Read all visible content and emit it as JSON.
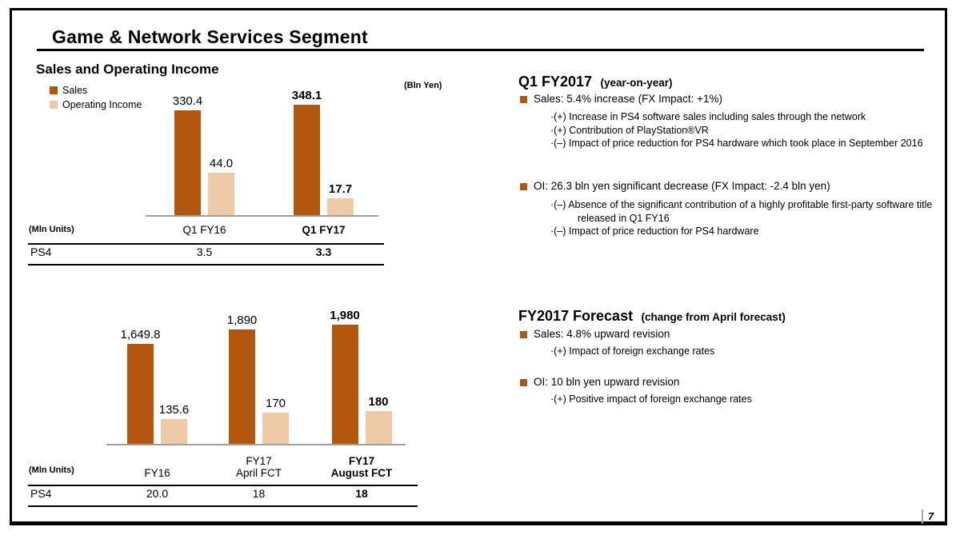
{
  "slide": {
    "title": "Game & Network Services Segment",
    "page_number": "7"
  },
  "left": {
    "section_title": "Sales and Operating Income",
    "unit_note": "(Bln Yen)",
    "legend": [
      {
        "label": "Sales",
        "color": "#b4570e"
      },
      {
        "label": "Operating Income",
        "color": "#eecaa7"
      }
    ]
  },
  "chart_data": [
    {
      "type": "bar",
      "title": "Sales and Operating Income",
      "subtitle": "Q1 year-on-year (Bln Yen)",
      "categories": [
        "Q1 FY16",
        "Q1 FY17"
      ],
      "emphasized_category_index": 1,
      "legend_position": "top-left",
      "grid": false,
      "series": [
        {
          "name": "Sales",
          "color": "#b4570e",
          "values": [
            330.4,
            348.1
          ],
          "value_labels": [
            "330.4",
            "348.1"
          ]
        },
        {
          "name": "Operating Income",
          "color": "#eecaa7",
          "values": [
            44.0,
            17.7
          ],
          "value_labels": [
            "44.0",
            "17.7"
          ]
        }
      ],
      "units_table": {
        "unit_label": "(Mln Units)",
        "row_label": "PS4",
        "values": [
          "3.5",
          "3.3"
        ]
      }
    },
    {
      "type": "bar",
      "title": "Sales and Operating Income",
      "subtitle": "Full year and forecasts (Bln Yen)",
      "categories": [
        "FY16",
        "FY17\nApril FCT",
        "FY17\nAugust FCT"
      ],
      "emphasized_category_index": 2,
      "legend_position": "none",
      "grid": false,
      "series": [
        {
          "name": "Sales",
          "color": "#b4570e",
          "values": [
            1649.8,
            1890,
            1980
          ],
          "value_labels": [
            "1,649.8",
            "1,890",
            "1,980"
          ]
        },
        {
          "name": "Operating Income",
          "color": "#eecaa7",
          "values": [
            135.6,
            170,
            180
          ],
          "value_labels": [
            "135.6",
            "170",
            "180"
          ]
        }
      ],
      "units_table": {
        "unit_label": "(Mln Units)",
        "row_label": "PS4",
        "values": [
          "20.0",
          "18",
          "18"
        ]
      }
    }
  ],
  "right": {
    "q1": {
      "heading": "Q1 FY2017",
      "heading_note": "(year-on-year)",
      "bullets": [
        {
          "text": "Sales: 5.4% increase (FX Impact:  +1%)",
          "subs": [
            "·(+) Increase in PS4 software sales including sales through the network",
            "·(+) Contribution of PlayStation®VR",
            "·(–) Impact of price reduction for PS4 hardware which took place in September 2016"
          ]
        },
        {
          "text": "OI: 26.3 bln yen significant decrease (FX Impact:  -2.4 bln yen)",
          "subs": [
            "·(–) Absence of the significant contribution of a highly profitable first-party software title released in Q1 FY16",
            "·(–) Impact of price reduction for PS4 hardware"
          ]
        }
      ]
    },
    "forecast": {
      "heading": "FY2017 Forecast",
      "heading_note": "(change from April forecast)",
      "bullets": [
        {
          "text": "Sales: 4.8% upward revision",
          "subs": [
            "·(+) Impact of foreign exchange rates"
          ]
        },
        {
          "text": "OI: 10 bln yen upward revision",
          "subs": [
            "·(+) Positive impact of foreign exchange rates"
          ]
        }
      ]
    },
    "accent_color": "#b4570e"
  }
}
